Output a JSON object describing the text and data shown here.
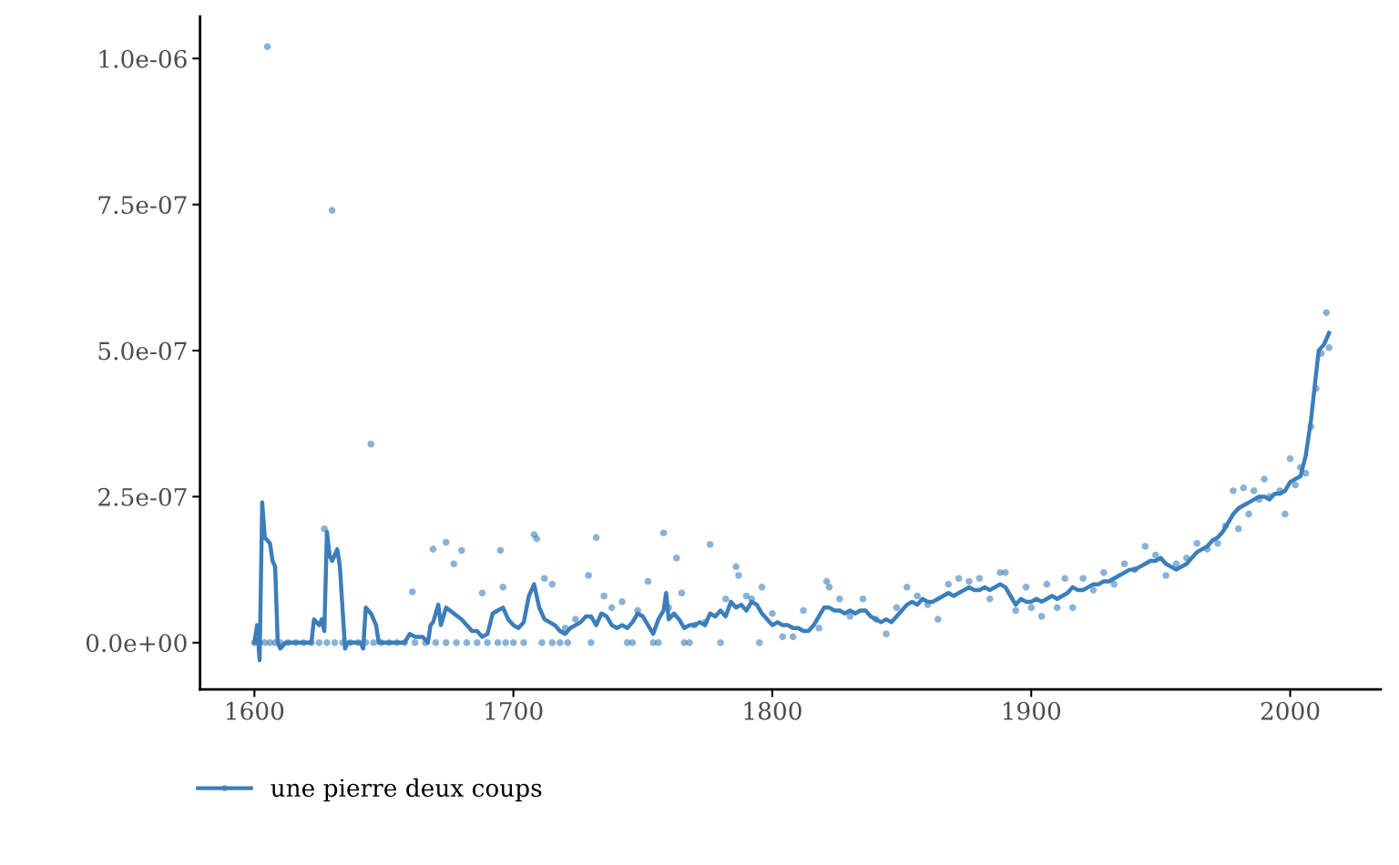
{
  "chart_data": {
    "type": "line",
    "xlim": [
      1579,
      2035
    ],
    "xticks": [
      1600,
      1700,
      1800,
      1900,
      2000
    ],
    "ylim": [
      -8e-08,
      1.072e-06
    ],
    "yticks": [
      {
        "value": 0,
        "label": "0.0e+00"
      },
      {
        "value": 2.5e-07,
        "label": "2.5e-07"
      },
      {
        "value": 5e-07,
        "label": "5.0e-07"
      },
      {
        "value": 7.5e-07,
        "label": "7.5e-07"
      },
      {
        "value": 1e-06,
        "label": "1.0e-06"
      }
    ],
    "grid": false,
    "legend": "bottom",
    "series": [
      {
        "type": "scatter",
        "color": "#3b7ebb",
        "marker": "circle",
        "x": [
          1605,
          1630,
          1645,
          1627,
          1661,
          1669,
          1674,
          1677,
          1680,
          1695,
          1708,
          1709,
          1712,
          1732,
          1729,
          1758,
          1763,
          1776,
          1786,
          1787,
          1752,
          1715,
          1696,
          1688,
          1600,
          1602,
          1604,
          1606,
          1608,
          1610,
          1613,
          1616,
          1619,
          1622,
          1625,
          1628,
          1631,
          1634,
          1637,
          1640,
          1643,
          1646,
          1649,
          1652,
          1655,
          1658,
          1662,
          1666,
          1670,
          1674,
          1678,
          1682,
          1686,
          1690,
          1694,
          1697,
          1700,
          1704,
          1711,
          1715,
          1718,
          1721,
          1730,
          1744,
          1746,
          1754,
          1756,
          1766,
          1768,
          1780,
          1795,
          1720,
          1724,
          1735,
          1738,
          1742,
          1748,
          1760,
          1765,
          1770,
          1774,
          1782,
          1790,
          1792,
          1796,
          1800,
          1804,
          1808,
          1812,
          1818,
          1821,
          1822,
          1826,
          1830,
          1835,
          1840,
          1844,
          1848,
          1852,
          1856,
          1860,
          1864,
          1868,
          1872,
          1876,
          1880,
          1884,
          1888,
          1890,
          1894,
          1898,
          1900,
          1904,
          1906,
          1910,
          1913,
          1916,
          1920,
          1924,
          1928,
          1932,
          1936,
          1940,
          1944,
          1948,
          1952,
          1956,
          1960,
          1964,
          1968,
          1972,
          1975,
          1978,
          1980,
          1982,
          1984,
          1986,
          1988,
          1990,
          1992,
          1996,
          1998,
          2000,
          2002,
          2004,
          2006,
          2008,
          2010,
          2012,
          2014,
          2015
        ],
        "values": [
          1.02e-06,
          7.4e-07,
          3.4e-07,
          1.95e-07,
          8.7e-08,
          1.6e-07,
          1.72e-07,
          1.35e-07,
          1.58e-07,
          1.58e-07,
          1.85e-07,
          1.78e-07,
          1.1e-07,
          1.8e-07,
          1.15e-07,
          1.88e-07,
          1.45e-07,
          1.68e-07,
          1.3e-07,
          1.15e-07,
          1.05e-07,
          1e-07,
          9.5e-08,
          8.5e-08,
          0,
          0,
          0,
          0,
          0,
          0,
          0,
          0,
          0,
          0,
          0,
          0,
          0,
          0,
          0,
          0,
          0,
          0,
          0,
          0,
          0,
          0,
          0,
          0,
          0,
          0,
          0,
          0,
          0,
          0,
          0,
          0,
          0,
          0,
          0,
          0,
          0,
          0,
          0,
          0,
          0,
          0,
          0,
          0,
          0,
          0,
          0,
          2.5e-08,
          4e-08,
          8e-08,
          6e-08,
          7e-08,
          5.5e-08,
          6e-08,
          8.5e-08,
          3e-08,
          3.5e-08,
          7.5e-08,
          8e-08,
          7.5e-08,
          9.5e-08,
          5e-08,
          1e-08,
          1e-08,
          5.5e-08,
          2.5e-08,
          1.05e-07,
          9.5e-08,
          7.5e-08,
          4.5e-08,
          7.5e-08,
          4e-08,
          1.5e-08,
          6e-08,
          9.5e-08,
          8e-08,
          6.5e-08,
          4e-08,
          1e-07,
          1.1e-07,
          1.05e-07,
          1.1e-07,
          7.5e-08,
          1.2e-07,
          1.2e-07,
          5.5e-08,
          9.5e-08,
          6e-08,
          4.5e-08,
          1e-07,
          6e-08,
          1.1e-07,
          6e-08,
          1.1e-07,
          9e-08,
          1.2e-07,
          1e-07,
          1.35e-07,
          1.25e-07,
          1.65e-07,
          1.5e-07,
          1.15e-07,
          1.35e-07,
          1.45e-07,
          1.7e-07,
          1.6e-07,
          1.7e-07,
          2e-07,
          2.6e-07,
          1.95e-07,
          2.65e-07,
          2.2e-07,
          2.6e-07,
          2.45e-07,
          2.8e-07,
          2.5e-07,
          2.6e-07,
          2.2e-07,
          3.15e-07,
          2.7e-07,
          3e-07,
          2.9e-07,
          3.7e-07,
          4.35e-07,
          4.95e-07,
          5.65e-07,
          5.05e-07
        ]
      },
      {
        "name": "une pierre deux coups",
        "color": "#3b7ebb",
        "line_style": "solid",
        "x": [
          1600,
          1601,
          1602,
          1603,
          1604,
          1606,
          1607,
          1608,
          1609,
          1610,
          1612,
          1622,
          1623,
          1625,
          1626,
          1627,
          1628,
          1629,
          1630,
          1632,
          1633,
          1635,
          1636,
          1641,
          1642,
          1643,
          1645,
          1647,
          1648,
          1658,
          1660,
          1662,
          1665,
          1666,
          1667,
          1668,
          1669,
          1671,
          1672,
          1674,
          1677,
          1680,
          1682,
          1684,
          1686,
          1688,
          1690,
          1692,
          1694,
          1696,
          1698,
          1700,
          1702,
          1704,
          1706,
          1708,
          1710,
          1712,
          1714,
          1716,
          1718,
          1720,
          1722,
          1724,
          1726,
          1728,
          1730,
          1732,
          1734,
          1736,
          1738,
          1740,
          1742,
          1744,
          1746,
          1748,
          1750,
          1752,
          1754,
          1756,
          1758,
          1759,
          1760,
          1762,
          1764,
          1766,
          1768,
          1770,
          1772,
          1774,
          1776,
          1778,
          1780,
          1782,
          1784,
          1786,
          1788,
          1790,
          1792,
          1794,
          1796,
          1798,
          1800,
          1802,
          1804,
          1806,
          1808,
          1810,
          1812,
          1814,
          1816,
          1818,
          1820,
          1822,
          1824,
          1826,
          1828,
          1830,
          1832,
          1834,
          1836,
          1838,
          1840,
          1842,
          1844,
          1846,
          1848,
          1850,
          1852,
          1854,
          1856,
          1858,
          1860,
          1862,
          1864,
          1866,
          1868,
          1870,
          1872,
          1874,
          1876,
          1878,
          1880,
          1882,
          1884,
          1886,
          1888,
          1890,
          1892,
          1894,
          1896,
          1898,
          1900,
          1902,
          1904,
          1906,
          1908,
          1910,
          1912,
          1914,
          1916,
          1918,
          1920,
          1922,
          1924,
          1926,
          1928,
          1930,
          1932,
          1934,
          1936,
          1938,
          1940,
          1942,
          1944,
          1946,
          1948,
          1950,
          1952,
          1954,
          1956,
          1958,
          1960,
          1962,
          1964,
          1966,
          1968,
          1970,
          1972,
          1974,
          1976,
          1978,
          1980,
          1982,
          1984,
          1986,
          1988,
          1990,
          1992,
          1994,
          1996,
          1998,
          2000,
          2002,
          2004,
          2006,
          2008,
          2010,
          2011,
          2013,
          2015
        ],
        "values": [
          0,
          3e-08,
          -3e-08,
          2.4e-07,
          1.8e-07,
          1.7e-07,
          1.4e-07,
          1.3e-07,
          0,
          -1e-08,
          0,
          0,
          4e-08,
          3e-08,
          4e-08,
          2e-08,
          1.9e-07,
          1.5e-07,
          1.4e-07,
          1.6e-07,
          1.3e-07,
          -1e-08,
          0,
          0,
          -1e-08,
          6e-08,
          5e-08,
          3e-08,
          0,
          0,
          1.5e-08,
          1e-08,
          1e-08,
          5e-09,
          0,
          3e-08,
          3.5e-08,
          6.5e-08,
          3e-08,
          6e-08,
          5e-08,
          4e-08,
          3e-08,
          2e-08,
          2e-08,
          1e-08,
          1.5e-08,
          5e-08,
          5.5e-08,
          6e-08,
          4e-08,
          3e-08,
          2.5e-08,
          3.5e-08,
          8e-08,
          1e-07,
          6e-08,
          4e-08,
          3.5e-08,
          3e-08,
          2e-08,
          1.5e-08,
          2.5e-08,
          3e-08,
          3.5e-08,
          4.5e-08,
          4.5e-08,
          3e-08,
          5e-08,
          4.5e-08,
          3e-08,
          2.5e-08,
          3e-08,
          2.5e-08,
          3.5e-08,
          5e-08,
          4.5e-08,
          3e-08,
          1.5e-08,
          4e-08,
          5.5e-08,
          8.5e-08,
          4e-08,
          5e-08,
          4e-08,
          2.5e-08,
          3e-08,
          3e-08,
          3.5e-08,
          3e-08,
          5e-08,
          4.5e-08,
          5.5e-08,
          4.5e-08,
          7e-08,
          6e-08,
          6.5e-08,
          5.5e-08,
          7e-08,
          6.5e-08,
          5e-08,
          4e-08,
          3e-08,
          3.5e-08,
          3e-08,
          3e-08,
          2.5e-08,
          2.5e-08,
          2e-08,
          2e-08,
          3e-08,
          4.5e-08,
          6e-08,
          6e-08,
          5.5e-08,
          5.5e-08,
          5e-08,
          5.5e-08,
          5e-08,
          5.5e-08,
          5.5e-08,
          4.5e-08,
          4e-08,
          3.5e-08,
          4e-08,
          3.5e-08,
          4.5e-08,
          5.5e-08,
          6.5e-08,
          7e-08,
          6.5e-08,
          7.5e-08,
          7e-08,
          7e-08,
          7.5e-08,
          8e-08,
          8.5e-08,
          8e-08,
          8.5e-08,
          9e-08,
          9.5e-08,
          9e-08,
          9e-08,
          9.5e-08,
          9e-08,
          9.5e-08,
          1e-07,
          9.5e-08,
          8e-08,
          6.5e-08,
          7.5e-08,
          7e-08,
          7e-08,
          7.5e-08,
          7e-08,
          7.5e-08,
          8e-08,
          7.5e-08,
          8e-08,
          8.5e-08,
          9.5e-08,
          9e-08,
          9e-08,
          9.5e-08,
          1e-07,
          1e-07,
          1.05e-07,
          1.05e-07,
          1.1e-07,
          1.15e-07,
          1.2e-07,
          1.25e-07,
          1.25e-07,
          1.3e-07,
          1.35e-07,
          1.4e-07,
          1.4e-07,
          1.45e-07,
          1.35e-07,
          1.3e-07,
          1.25e-07,
          1.3e-07,
          1.35e-07,
          1.45e-07,
          1.55e-07,
          1.6e-07,
          1.65e-07,
          1.75e-07,
          1.8e-07,
          1.9e-07,
          2.05e-07,
          2.2e-07,
          2.3e-07,
          2.35e-07,
          2.4e-07,
          2.45e-07,
          2.5e-07,
          2.5e-07,
          2.45e-07,
          2.55e-07,
          2.55e-07,
          2.6e-07,
          2.75e-07,
          2.8e-07,
          2.85e-07,
          3.2e-07,
          3.8e-07,
          4.6e-07,
          5e-07,
          5.1e-07,
          5.3e-07
        ]
      }
    ]
  }
}
